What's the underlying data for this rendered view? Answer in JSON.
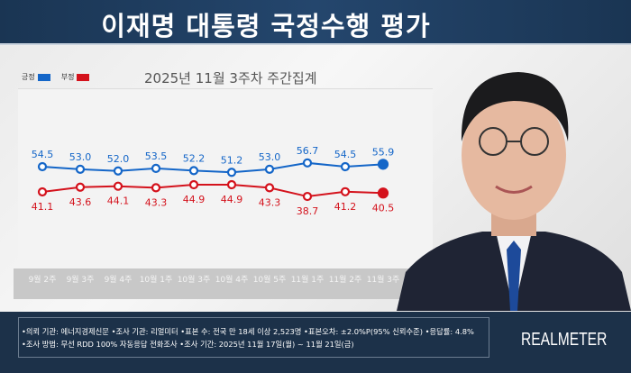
{
  "header": {
    "title": "이재명 대통령 국정수행 평가"
  },
  "chart_data": {
    "type": "line",
    "title": "2025년 11월 3주차 주간집계",
    "categories": [
      "9월 2주",
      "9월 3주",
      "9월 4주",
      "10월 1주",
      "10월 3주",
      "10월 4주",
      "10월 5주",
      "11월 1주",
      "11월 2주",
      "11월 3주"
    ],
    "series": [
      {
        "name": "긍정",
        "color": "#1466c8",
        "values": [
          54.5,
          53.0,
          52.0,
          53.5,
          52.2,
          51.2,
          53.0,
          56.7,
          54.5,
          55.9
        ]
      },
      {
        "name": "부정",
        "color": "#d4121c",
        "values": [
          41.1,
          43.6,
          44.1,
          43.3,
          44.9,
          44.9,
          43.3,
          38.7,
          41.2,
          40.5
        ]
      }
    ],
    "grid": false,
    "legend": "top-left"
  },
  "footer": {
    "line1": "•의뢰 기관: 에너지경제신문 •조사 기관: 리얼미터 •표본 수: 전국 만 18세 이상 2,523명 •표본오차: ±2.0%P(95% 신뢰수준) •응답률: 4.8%",
    "line2": "•조사 방법: 무선 RDD 100% 자동응답 전화조사 •조사 기간: 2025년 11월 17일(월) ~ 11월 21일(금)",
    "brand": "REALMETER"
  }
}
